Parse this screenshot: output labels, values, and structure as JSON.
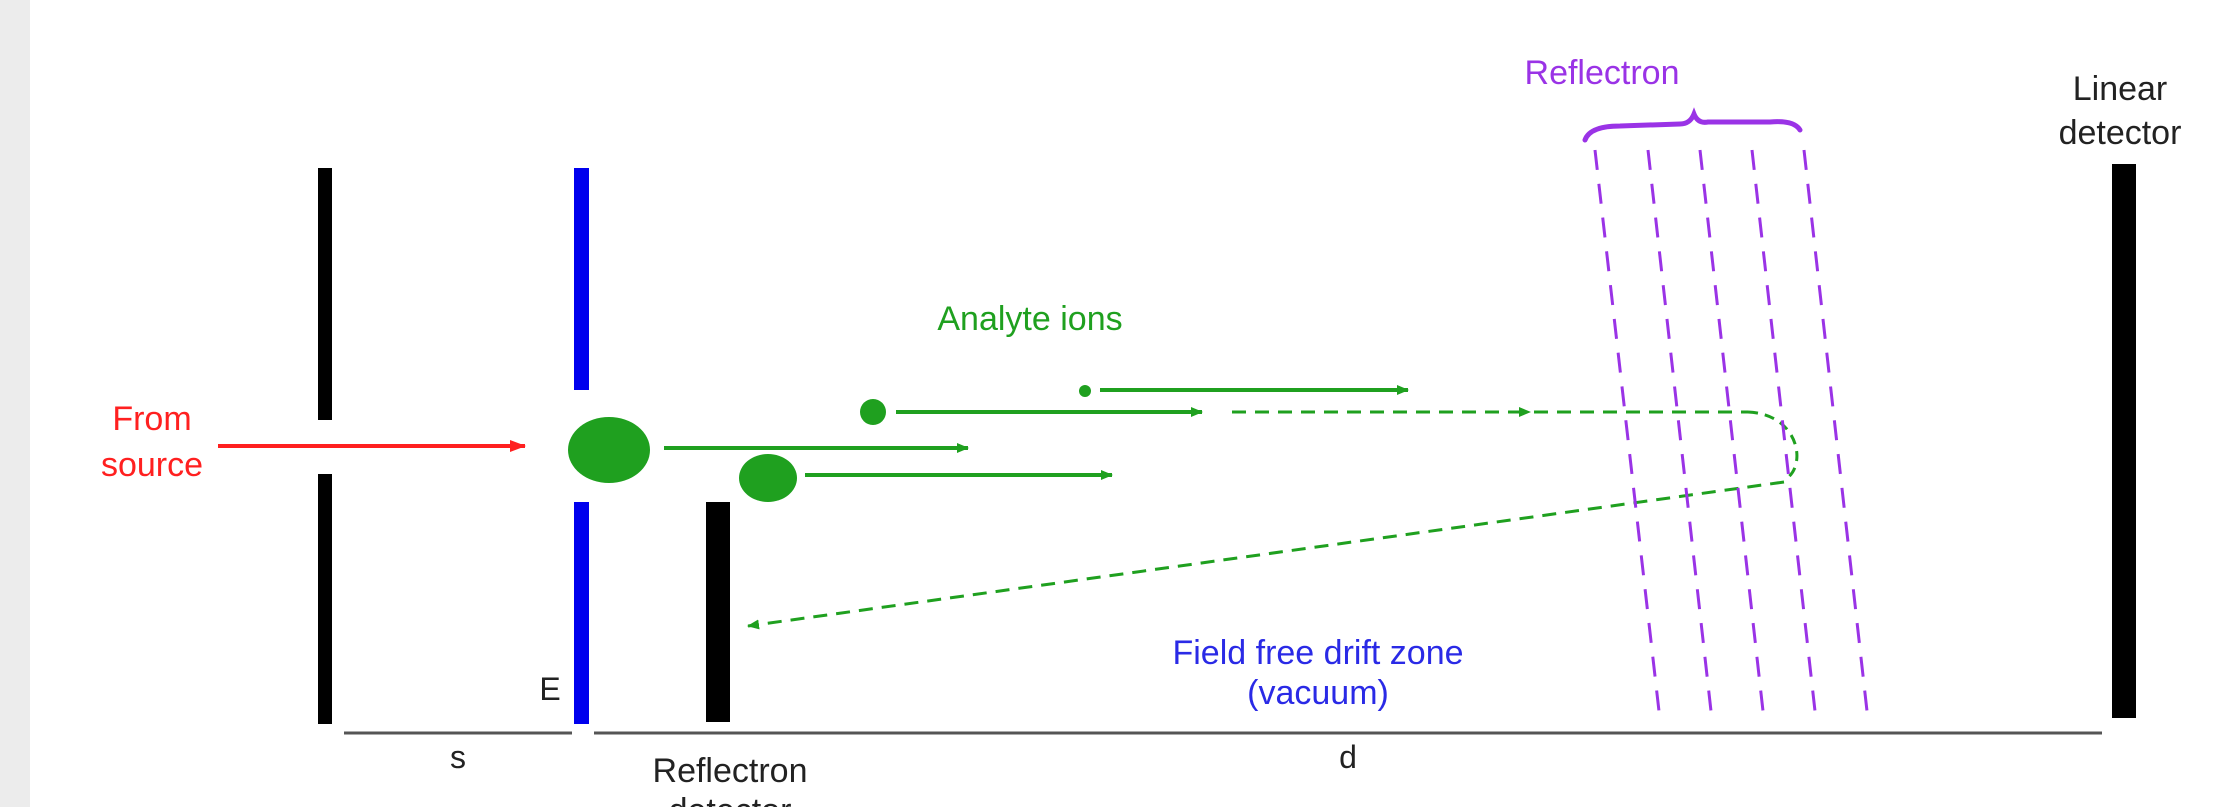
{
  "labels": {
    "reflectron_top": "Reflectron",
    "linear_detector_line1": "Linear",
    "linear_detector_line2": "detector",
    "analyte_ions": "Analyte ions",
    "from_line1": "From",
    "from_line2": "source",
    "field_free_line1": "Field free drift zone",
    "field_free_line2": "(vacuum)",
    "electrode_e": "E",
    "dim_s": "s",
    "dim_d": "d",
    "reflectron_detector_line1": "Reflectron",
    "reflectron_detector_line2": "detector"
  },
  "colors": {
    "electrode": "#000000",
    "accelerating_plate": "#0000ee",
    "source_arrow": "#ff2020",
    "ions": "#1fa01f",
    "reflectron": "#9a33e6",
    "field_free_text": "#2a2ae6",
    "axis": "#555555",
    "text": "#222222",
    "edge_strip": "#ececec"
  }
}
